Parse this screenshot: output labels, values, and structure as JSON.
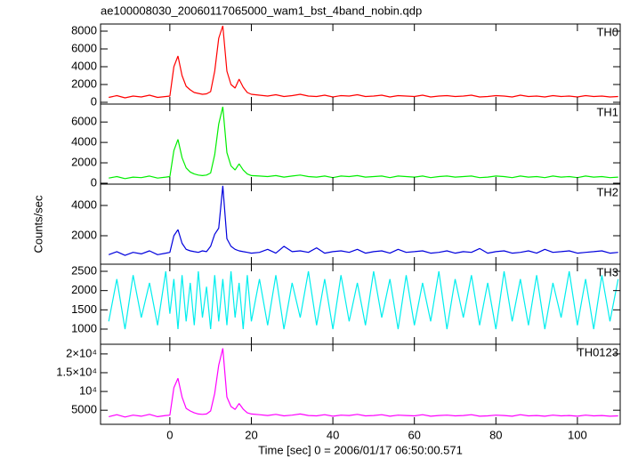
{
  "chart_data": {
    "type": "line",
    "title": "ae100008030_20060117065000_wam1_bst_4band_nobin.qdp",
    "xlabel": "Time [sec] 0 = 2006/01/17 06:50:00.571",
    "ylabel": "Counts/sec",
    "xlim": [
      -17,
      110.5
    ],
    "xticks": [
      0,
      20,
      40,
      60,
      80,
      100
    ],
    "x": [
      -15,
      -13,
      -11,
      -9,
      -7,
      -5,
      -3,
      -1,
      0,
      1,
      2,
      3,
      4,
      5,
      6,
      7,
      8,
      9,
      10,
      11,
      12,
      13,
      14,
      15,
      16,
      17,
      18,
      19,
      20,
      22,
      24,
      26,
      28,
      30,
      32,
      34,
      36,
      38,
      40,
      42,
      44,
      46,
      48,
      50,
      52,
      54,
      56,
      58,
      60,
      62,
      64,
      66,
      68,
      70,
      72,
      74,
      76,
      78,
      80,
      82,
      84,
      86,
      88,
      90,
      92,
      94,
      96,
      98,
      100,
      102,
      104,
      106,
      108,
      110
    ],
    "series": [
      {
        "name": "TH0",
        "color": "#ff0000",
        "ylim": [
          -200,
          8800
        ],
        "yticks": [
          0,
          2000,
          4000,
          6000,
          8000
        ],
        "values": [
          550,
          750,
          500,
          700,
          600,
          800,
          550,
          650,
          700,
          4000,
          5200,
          3000,
          1800,
          1400,
          1100,
          1000,
          900,
          950,
          1200,
          3500,
          7200,
          8600,
          3500,
          2000,
          1600,
          2600,
          1700,
          1100,
          900,
          800,
          700,
          850,
          650,
          750,
          900,
          700,
          650,
          800,
          600,
          750,
          700,
          850,
          650,
          700,
          800,
          600,
          750,
          700,
          650,
          800,
          600,
          700,
          750,
          650,
          700,
          800,
          600,
          650,
          750,
          700,
          600,
          800,
          650,
          700,
          600,
          750,
          650,
          700,
          600,
          750,
          650,
          700,
          600,
          650
        ]
      },
      {
        "name": "TH1",
        "color": "#00ee00",
        "ylim": [
          -90,
          7760
        ],
        "yticks": [
          0,
          2000,
          4000,
          6000
        ],
        "values": [
          500,
          650,
          450,
          600,
          550,
          700,
          500,
          600,
          650,
          3200,
          4300,
          2500,
          1500,
          1100,
          900,
          800,
          750,
          800,
          1000,
          2800,
          5800,
          7500,
          3000,
          1700,
          1300,
          1900,
          1300,
          900,
          750,
          700,
          650,
          750,
          600,
          700,
          800,
          650,
          600,
          700,
          550,
          700,
          650,
          750,
          600,
          650,
          700,
          550,
          700,
          650,
          600,
          700,
          550,
          650,
          700,
          600,
          650,
          700,
          550,
          600,
          700,
          650,
          550,
          700,
          600,
          650,
          550,
          700,
          600,
          650,
          550,
          700,
          600,
          650,
          550,
          600
        ]
      },
      {
        "name": "TH2",
        "color": "#0000dd",
        "ylim": [
          118,
          5410
        ],
        "yticks": [
          2000,
          4000
        ],
        "values": [
          750,
          950,
          700,
          900,
          800,
          1000,
          750,
          850,
          900,
          2000,
          2400,
          1500,
          1100,
          1000,
          950,
          900,
          1000,
          950,
          1300,
          2100,
          2500,
          5300,
          1800,
          1300,
          1100,
          1000,
          950,
          900,
          850,
          900,
          1100,
          850,
          1300,
          950,
          1000,
          900,
          1200,
          850,
          950,
          1000,
          900,
          1100,
          850,
          950,
          1000,
          850,
          1100,
          900,
          950,
          1000,
          850,
          900,
          1000,
          850,
          950,
          900,
          1150,
          850,
          950,
          1000,
          850,
          900,
          1000,
          850,
          1100,
          900,
          950,
          1000,
          850,
          900,
          950,
          1000,
          850,
          900
        ]
      },
      {
        "name": "TH3",
        "color": "#00eeee",
        "ylim": [
          607,
          2685
        ],
        "yticks": [
          1000,
          1500,
          2000,
          2500
        ],
        "values": [
          1200,
          2300,
          1000,
          2400,
          1300,
          2200,
          1100,
          2500,
          1400,
          2300,
          1000,
          2400,
          1200,
          2200,
          1100,
          2500,
          1300,
          2100,
          1000,
          2400,
          1200,
          2300,
          1100,
          2500,
          1300,
          2200,
          1000,
          2400,
          1200,
          2300,
          1100,
          2400,
          1000,
          2200,
          1300,
          2500,
          1100,
          2300,
          1000,
          2400,
          1200,
          2200,
          1100,
          2500,
          1300,
          2300,
          1000,
          2400,
          1100,
          2200,
          1200,
          2500,
          1000,
          2300,
          1300,
          2400,
          1100,
          2200,
          1000,
          2500,
          1200,
          2300,
          1100,
          2400,
          1000,
          2200,
          1300,
          2500,
          1100,
          2300,
          1000,
          2400,
          1200,
          2300
        ]
      },
      {
        "name": "TH0123",
        "color": "#ff00ff",
        "ylim": [
          1250,
          22580
        ],
        "yticks": [
          {
            "value": 5000,
            "label": "5000"
          },
          {
            "value": 10000,
            "label": "10⁴"
          },
          {
            "value": 15000,
            "label": "1.5×10⁴"
          },
          {
            "value": 20000,
            "label": "2×10⁴"
          }
        ],
        "values": [
          3300,
          3800,
          3200,
          3700,
          3400,
          3900,
          3300,
          3600,
          3700,
          11000,
          13500,
          8500,
          5500,
          4800,
          4300,
          4000,
          3900,
          4000,
          4800,
          9500,
          17000,
          21500,
          8500,
          6000,
          5200,
          6800,
          5300,
          4300,
          4000,
          3800,
          3600,
          3900,
          3500,
          3700,
          4000,
          3600,
          3500,
          3800,
          3400,
          3700,
          3600,
          3900,
          3500,
          3600,
          3800,
          3400,
          3700,
          3600,
          3500,
          3800,
          3400,
          3600,
          3700,
          3500,
          3600,
          3800,
          3400,
          3500,
          3700,
          3600,
          3400,
          3800,
          3500,
          3600,
          3400,
          3700,
          3500,
          3600,
          3400,
          3700,
          3500,
          3600,
          3400,
          3500
        ]
      }
    ]
  }
}
